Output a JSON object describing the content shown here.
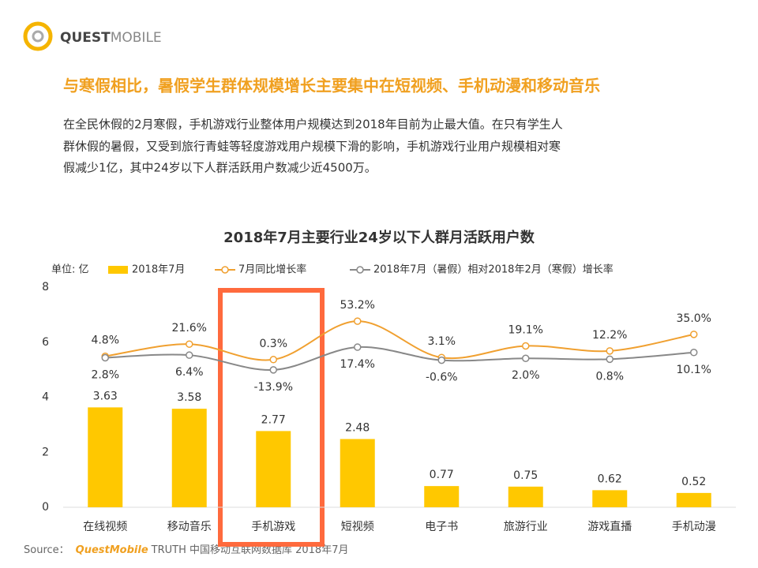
{
  "logo": {
    "bold": "QUEST",
    "light": "MOBILE"
  },
  "headline": "与寒假相比，暑假学生群体规模增长主要集中在短视频、手机动漫和移动音乐",
  "paragraph": [
    "在全民休假的2月寒假，手机游戏行业整体用户规模达到2018年目前为止最大值。在只有学生人",
    "群休假的暑假，又受到旅行青蛙等轻度游戏用户规模下滑的影响，手机游戏行业用户规模相对寒",
    "假减少1亿，其中24岁以下人群活跃用户数减少近4500万。"
  ],
  "source": {
    "prefix": "Source：",
    "brand": "QuestMobile",
    "rest": "TRUTH 中国移动互联网数据库 2018年7月"
  },
  "chart_data": {
    "type": "bar",
    "title": "2018年7月主要行业24岁以下人群月活跃用户数",
    "y_label": "单位: 亿",
    "categories": [
      "在线视频",
      "移动音乐",
      "手机游戏",
      "短视频",
      "电子书",
      "旅游行业",
      "游戏直播",
      "手机动漫"
    ],
    "series": [
      {
        "name": "2018年7月",
        "type": "bar",
        "color": "#ffc800",
        "values": [
          3.63,
          3.58,
          2.77,
          2.48,
          0.77,
          0.75,
          0.62,
          0.52
        ]
      },
      {
        "name": "7月同比增长率",
        "type": "line",
        "axis": "y2",
        "color": "#f0a030",
        "values": [
          4.8,
          21.6,
          0.3,
          53.2,
          3.1,
          19.1,
          12.2,
          35.0
        ],
        "value_labels": [
          "4.8%",
          "21.6%",
          "0.3%",
          "53.2%",
          "3.1%",
          "19.1%",
          "12.2%",
          "35.0%"
        ]
      },
      {
        "name": "2018年7月（暑假）相对2018年2月（寒假）增长率",
        "type": "line",
        "axis": "y2",
        "color": "#888888",
        "values": [
          2.8,
          6.4,
          -13.9,
          17.4,
          -0.6,
          2.0,
          0.8,
          10.1
        ],
        "value_labels": [
          "2.8%",
          "6.4%",
          "-13.9%",
          "17.4%",
          "-0.6%",
          "2.0%",
          "0.8%",
          "10.1%"
        ]
      }
    ],
    "ylim": [
      0,
      8
    ],
    "yticks": [
      0,
      2,
      4,
      6,
      8
    ],
    "y2lim": [
      -203,
      100
    ],
    "grid": false
  }
}
